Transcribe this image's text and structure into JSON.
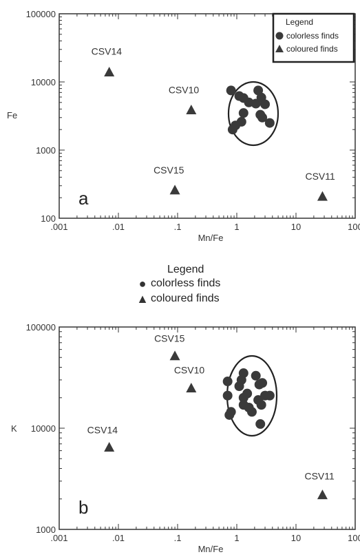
{
  "chart_data": [
    {
      "type": "scatter",
      "panel": "a",
      "xlabel": "Mn/Fe",
      "ylabel": "Fe",
      "xscale": "log",
      "yscale": "log",
      "xlim": [
        0.001,
        100
      ],
      "ylim": [
        100,
        100000
      ],
      "xticks": [
        ".001",
        ".01",
        ".1",
        "1",
        "10",
        "100"
      ],
      "yticks": [
        "100",
        "1000",
        "10000",
        "100000"
      ],
      "legend": {
        "title": "Legend",
        "placement": "top-right",
        "items": [
          "colorless finds",
          "coloured finds"
        ]
      },
      "series": [
        {
          "name": "colorless finds",
          "marker": "circle",
          "points": [
            {
              "x": 0.8,
              "y": 7500
            },
            {
              "x": 1.1,
              "y": 6200
            },
            {
              "x": 1.3,
              "y": 5800
            },
            {
              "x": 1.6,
              "y": 5000
            },
            {
              "x": 2.1,
              "y": 4800
            },
            {
              "x": 2.3,
              "y": 7500
            },
            {
              "x": 2.6,
              "y": 5900
            },
            {
              "x": 3.0,
              "y": 4700
            },
            {
              "x": 1.3,
              "y": 3500
            },
            {
              "x": 2.5,
              "y": 3300
            },
            {
              "x": 2.7,
              "y": 3000
            },
            {
              "x": 1.2,
              "y": 2600
            },
            {
              "x": 0.95,
              "y": 2300
            },
            {
              "x": 0.85,
              "y": 2000
            },
            {
              "x": 3.6,
              "y": 2500
            }
          ]
        },
        {
          "name": "coloured finds",
          "marker": "triangle",
          "points": [
            {
              "label": "CSV14",
              "x": 0.007,
              "y": 14000
            },
            {
              "label": "CSV10",
              "x": 0.17,
              "y": 3900
            },
            {
              "label": "CSV15",
              "x": 0.09,
              "y": 260
            },
            {
              "label": "CSV11",
              "x": 28,
              "y": 210
            }
          ]
        }
      ]
    },
    {
      "type": "scatter",
      "panel": "b",
      "xlabel": "Mn/Fe",
      "ylabel": "K",
      "xscale": "log",
      "yscale": "log",
      "xlim": [
        0.001,
        100
      ],
      "ylim": [
        1000,
        100000
      ],
      "xticks": [
        ".001",
        ".01",
        ".1",
        "1",
        "10",
        "100"
      ],
      "yticks": [
        "1000",
        "10000",
        "100000"
      ],
      "series": [
        {
          "name": "colorless finds",
          "marker": "circle",
          "points": [
            {
              "x": 0.7,
              "y": 29000
            },
            {
              "x": 1.1,
              "y": 26000
            },
            {
              "x": 1.3,
              "y": 35000
            },
            {
              "x": 1.2,
              "y": 30000
            },
            {
              "x": 2.1,
              "y": 33000
            },
            {
              "x": 2.4,
              "y": 27000
            },
            {
              "x": 2.7,
              "y": 28000
            },
            {
              "x": 0.7,
              "y": 21000
            },
            {
              "x": 1.3,
              "y": 20000
            },
            {
              "x": 1.5,
              "y": 22000
            },
            {
              "x": 1.3,
              "y": 17000
            },
            {
              "x": 1.6,
              "y": 16000
            },
            {
              "x": 2.3,
              "y": 19000
            },
            {
              "x": 2.6,
              "y": 17000
            },
            {
              "x": 3.0,
              "y": 21000
            },
            {
              "x": 3.6,
              "y": 21000
            },
            {
              "x": 0.8,
              "y": 14500
            },
            {
              "x": 0.75,
              "y": 13500
            },
            {
              "x": 1.8,
              "y": 14500
            },
            {
              "x": 2.5,
              "y": 11000
            }
          ]
        },
        {
          "name": "coloured finds",
          "marker": "triangle",
          "points": [
            {
              "label": "CSV15",
              "x": 0.09,
              "y": 52000
            },
            {
              "label": "CSV10",
              "x": 0.17,
              "y": 25000
            },
            {
              "label": "CSV14",
              "x": 0.007,
              "y": 6500
            },
            {
              "label": "CSV11",
              "x": 28,
              "y": 2200
            }
          ]
        }
      ]
    }
  ],
  "middle_legend": {
    "title": "Legend",
    "items": [
      "colorless finds",
      "coloured finds"
    ]
  }
}
